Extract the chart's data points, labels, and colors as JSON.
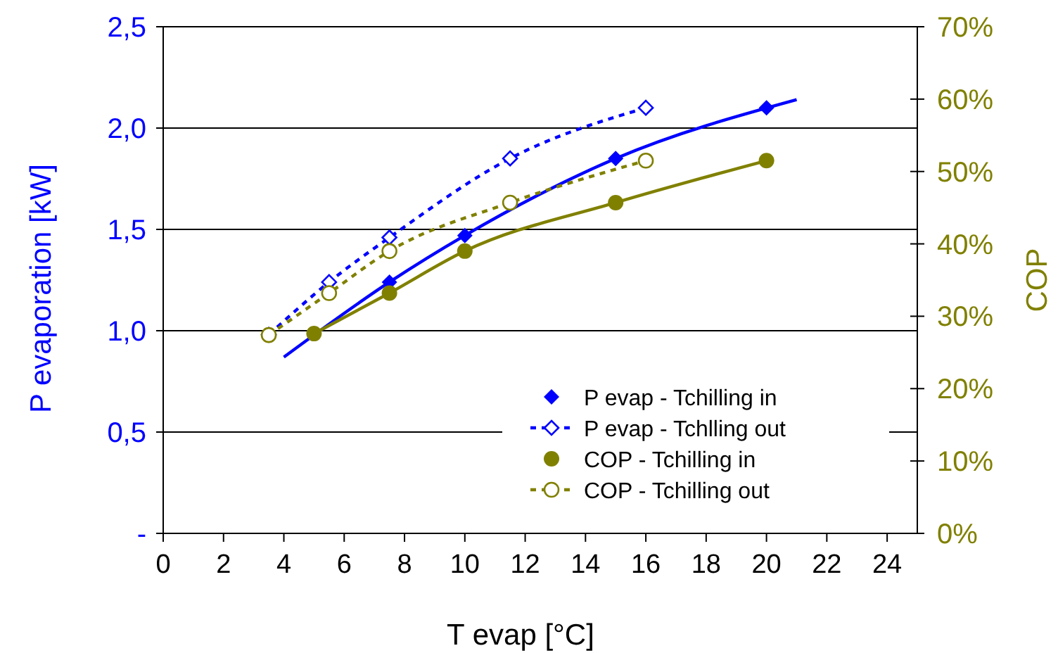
{
  "chart_data": {
    "type": "scatter",
    "xlabel": "T evap [°C]",
    "ylabel": "P evaporation [kW]",
    "y2label": "COP",
    "xlim": [
      0,
      25
    ],
    "xticks": [
      0,
      2,
      4,
      6,
      8,
      10,
      12,
      14,
      16,
      18,
      20,
      22,
      24
    ],
    "ylim": [
      0,
      2.5
    ],
    "yticks": [
      {
        "value": 0,
        "label": "-"
      },
      {
        "value": 0.5,
        "label": "0,5"
      },
      {
        "value": 1,
        "label": "1,0"
      },
      {
        "value": 1.5,
        "label": "1,5"
      },
      {
        "value": 2,
        "label": "2,0"
      },
      {
        "value": 2.5,
        "label": "2,5"
      }
    ],
    "y2lim": [
      0,
      70
    ],
    "y2ticks": [
      {
        "value": 0,
        "label": "0%"
      },
      {
        "value": 10,
        "label": "10%"
      },
      {
        "value": 20,
        "label": "20%"
      },
      {
        "value": 30,
        "label": "30%"
      },
      {
        "value": 40,
        "label": "40%"
      },
      {
        "value": 50,
        "label": "50%"
      },
      {
        "value": 60,
        "label": "60%"
      },
      {
        "value": 70,
        "label": "70%"
      }
    ],
    "grid": "y",
    "legend": "bottom right",
    "series": [
      {
        "name": "P evap - Tchilling in",
        "marker": "diamond",
        "color": "#0000ff",
        "x": [
          7.5,
          10,
          15,
          20
        ],
        "values": [
          1.24,
          1.47,
          1.85,
          2.1
        ]
      },
      {
        "name": "P evap - Tchlling out",
        "type": "line",
        "line_style": "dashed",
        "marker": "diamond",
        "color": "#0000ff",
        "x": [
          3.5,
          5.5,
          7.5,
          11.5,
          16
        ],
        "values": [
          0.98,
          1.24,
          1.46,
          1.85,
          2.1
        ]
      },
      {
        "name": "COP - Tchilling in",
        "marker": "circle",
        "color": "#808000",
        "axis": "y2",
        "x": [
          5,
          7.5,
          10,
          15,
          20
        ],
        "values": [
          27.6,
          33.2,
          39,
          45.7,
          51.5
        ]
      },
      {
        "name": "COP - Tchilling out",
        "type": "line",
        "line_style": "dashed",
        "marker": "circle",
        "color": "#808000",
        "axis": "y2",
        "x": [
          3.5,
          5.5,
          7.5,
          11.5,
          16
        ],
        "values": [
          27.4,
          33.2,
          39,
          45.7,
          51.5
        ]
      },
      {
        "type": "line",
        "line_style": "solid",
        "marker": "none",
        "color": "#0000ff",
        "x": [
          4,
          7.5,
          10,
          15,
          21
        ],
        "values": [
          0.87,
          1.24,
          1.47,
          1.85,
          2.14
        ]
      },
      {
        "type": "line",
        "line_style": "solid",
        "marker": "none",
        "color": "#808000",
        "axis": "y2",
        "x": [
          5,
          7.5,
          10,
          15,
          20
        ],
        "values": [
          27.6,
          33.2,
          39,
          45.7,
          51.5
        ]
      }
    ]
  }
}
